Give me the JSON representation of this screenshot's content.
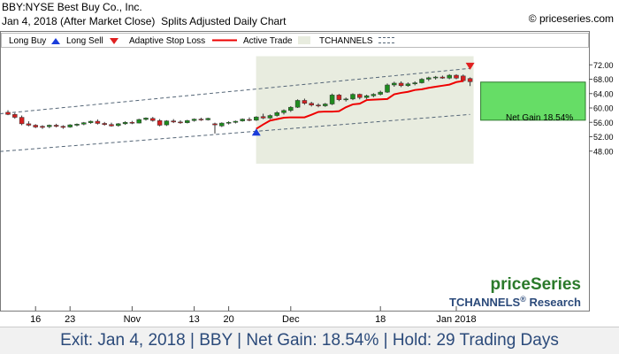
{
  "header": {
    "symbol_line": "BBY:NYSE Best Buy Co., Inc.",
    "date_line": "Jan 4, 2018 (After Market Close)",
    "chart_kind": "Splits Adjusted Daily Chart",
    "copyright": "© priceseries.com"
  },
  "legend": {
    "long_buy": "Long Buy",
    "long_sell": "Long Sell",
    "adaptive_stop_loss": "Adaptive Stop Loss",
    "active_trade": "Active Trade",
    "tchannels": "TCHANNELS"
  },
  "annotation": {
    "net_gain_label": "Net Gain 18.54%"
  },
  "branding": {
    "price_series": "priceSeries",
    "tchannels_research": "TCHANNELS",
    "registered": "®",
    "research": "Research"
  },
  "footer": {
    "summary": "Exit: Jan 4, 2018 | BBY | Net Gain: 18.54% | Hold: 29 Trading Days"
  },
  "colors": {
    "up_candle": "#1e8c1e",
    "down_candle": "#d42020",
    "stop_loss": "#ee0000",
    "active_trade_bg": "#e8ecdf",
    "gain_box": "#66dd66",
    "channel": "#556677",
    "buy_arrow": "#1b3ddb",
    "sell_arrow": "#e02020",
    "brand_green": "#2b7a2b",
    "brand_blue": "#2b4a7a"
  },
  "chart_data": {
    "type": "candlestick",
    "y_axis": {
      "ticks": [
        48,
        52,
        56,
        60,
        64,
        68,
        72
      ],
      "tick_labels": [
        "48.00",
        "52.00",
        "56.00",
        "60.00",
        "64.00",
        "68.00",
        "72.00"
      ]
    },
    "x_axis": {
      "tick_labels": [
        "16",
        "23",
        "Nov",
        "13",
        "20",
        "Dec",
        "18",
        "Jan 2018"
      ],
      "tick_index": [
        4,
        9,
        18,
        27,
        32,
        41,
        54,
        65
      ]
    },
    "grid": false,
    "candles": [
      {
        "o": 58.8,
        "h": 59.4,
        "l": 58.0,
        "c": 58.2
      },
      {
        "o": 58.2,
        "h": 58.6,
        "l": 57.0,
        "c": 57.4
      },
      {
        "o": 57.4,
        "h": 57.9,
        "l": 55.2,
        "c": 55.6
      },
      {
        "o": 55.6,
        "h": 56.3,
        "l": 54.9,
        "c": 55.2
      },
      {
        "o": 55.2,
        "h": 55.5,
        "l": 54.4,
        "c": 54.7
      },
      {
        "o": 54.9,
        "h": 55.2,
        "l": 54.2,
        "c": 54.6
      },
      {
        "o": 54.8,
        "h": 55.4,
        "l": 54.4,
        "c": 55.2
      },
      {
        "o": 55.2,
        "h": 55.6,
        "l": 54.6,
        "c": 54.9
      },
      {
        "o": 54.9,
        "h": 55.2,
        "l": 54.2,
        "c": 54.6
      },
      {
        "o": 54.7,
        "h": 55.5,
        "l": 54.5,
        "c": 55.3
      },
      {
        "o": 55.2,
        "h": 55.7,
        "l": 54.9,
        "c": 55.5
      },
      {
        "o": 55.5,
        "h": 56.1,
        "l": 55.2,
        "c": 55.9
      },
      {
        "o": 55.9,
        "h": 56.5,
        "l": 55.6,
        "c": 56.3
      },
      {
        "o": 56.3,
        "h": 56.8,
        "l": 55.4,
        "c": 55.7
      },
      {
        "o": 55.7,
        "h": 56.1,
        "l": 55.1,
        "c": 55.4
      },
      {
        "o": 55.4,
        "h": 55.9,
        "l": 54.8,
        "c": 55.0
      },
      {
        "o": 55.1,
        "h": 55.8,
        "l": 54.8,
        "c": 55.6
      },
      {
        "o": 55.6,
        "h": 56.3,
        "l": 55.3,
        "c": 56.0
      },
      {
        "o": 56.0,
        "h": 56.4,
        "l": 55.5,
        "c": 55.8
      },
      {
        "o": 55.8,
        "h": 57.0,
        "l": 55.7,
        "c": 56.8
      },
      {
        "o": 56.8,
        "h": 57.4,
        "l": 56.5,
        "c": 57.2
      },
      {
        "o": 57.1,
        "h": 57.5,
        "l": 56.2,
        "c": 56.5
      },
      {
        "o": 56.5,
        "h": 56.9,
        "l": 54.9,
        "c": 55.2
      },
      {
        "o": 55.3,
        "h": 56.6,
        "l": 55.0,
        "c": 56.4
      },
      {
        "o": 56.4,
        "h": 56.9,
        "l": 55.8,
        "c": 56.1
      },
      {
        "o": 56.1,
        "h": 56.6,
        "l": 55.6,
        "c": 55.9
      },
      {
        "o": 55.9,
        "h": 56.7,
        "l": 55.7,
        "c": 56.5
      },
      {
        "o": 56.5,
        "h": 57.1,
        "l": 56.2,
        "c": 56.9
      },
      {
        "o": 56.9,
        "h": 57.3,
        "l": 56.4,
        "c": 56.7
      },
      {
        "o": 56.7,
        "h": 57.3,
        "l": 56.5,
        "c": 57.1
      },
      {
        "o": 55.6,
        "h": 55.9,
        "l": 52.9,
        "c": 55.3
      },
      {
        "o": 55.0,
        "h": 56.0,
        "l": 54.7,
        "c": 55.8
      },
      {
        "o": 55.8,
        "h": 56.3,
        "l": 55.4,
        "c": 56.0
      },
      {
        "o": 56.0,
        "h": 56.5,
        "l": 55.7,
        "c": 56.3
      },
      {
        "o": 56.4,
        "h": 57.1,
        "l": 56.2,
        "c": 56.9
      },
      {
        "o": 56.8,
        "h": 57.4,
        "l": 56.3,
        "c": 56.6
      },
      {
        "o": 56.6,
        "h": 57.7,
        "l": 56.4,
        "c": 57.5
      },
      {
        "o": 57.6,
        "h": 58.4,
        "l": 56.9,
        "c": 57.2
      },
      {
        "o": 57.2,
        "h": 58.2,
        "l": 56.9,
        "c": 57.9
      },
      {
        "o": 57.9,
        "h": 59.1,
        "l": 57.6,
        "c": 58.7
      },
      {
        "o": 58.7,
        "h": 59.6,
        "l": 58.2,
        "c": 59.3
      },
      {
        "o": 59.3,
        "h": 60.5,
        "l": 58.9,
        "c": 60.2
      },
      {
        "o": 60.2,
        "h": 62.4,
        "l": 60.0,
        "c": 62.1
      },
      {
        "o": 62.1,
        "h": 62.6,
        "l": 60.9,
        "c": 61.3
      },
      {
        "o": 61.3,
        "h": 61.7,
        "l": 60.4,
        "c": 60.8
      },
      {
        "o": 60.8,
        "h": 61.3,
        "l": 60.2,
        "c": 60.6
      },
      {
        "o": 60.6,
        "h": 61.4,
        "l": 60.3,
        "c": 61.1
      },
      {
        "o": 61.1,
        "h": 64.0,
        "l": 60.8,
        "c": 63.6
      },
      {
        "o": 63.6,
        "h": 63.9,
        "l": 61.9,
        "c": 62.3
      },
      {
        "o": 62.3,
        "h": 62.9,
        "l": 61.8,
        "c": 62.5
      },
      {
        "o": 62.5,
        "h": 64.1,
        "l": 62.2,
        "c": 63.8
      },
      {
        "o": 63.8,
        "h": 64.0,
        "l": 62.4,
        "c": 62.9
      },
      {
        "o": 62.9,
        "h": 63.7,
        "l": 62.5,
        "c": 63.4
      },
      {
        "o": 63.4,
        "h": 64.1,
        "l": 63.0,
        "c": 63.8
      },
      {
        "o": 63.8,
        "h": 64.8,
        "l": 63.5,
        "c": 64.4
      },
      {
        "o": 64.4,
        "h": 66.8,
        "l": 64.2,
        "c": 66.4
      },
      {
        "o": 66.4,
        "h": 67.3,
        "l": 65.9,
        "c": 66.9
      },
      {
        "o": 66.9,
        "h": 67.4,
        "l": 65.8,
        "c": 66.2
      },
      {
        "o": 66.2,
        "h": 67.1,
        "l": 65.9,
        "c": 66.7
      },
      {
        "o": 66.7,
        "h": 67.4,
        "l": 66.3,
        "c": 67.0
      },
      {
        "o": 67.0,
        "h": 68.3,
        "l": 66.8,
        "c": 68.0
      },
      {
        "o": 68.0,
        "h": 68.7,
        "l": 67.5,
        "c": 68.4
      },
      {
        "o": 68.4,
        "h": 68.9,
        "l": 67.9,
        "c": 68.6
      },
      {
        "o": 68.6,
        "h": 69.0,
        "l": 68.1,
        "c": 68.3
      },
      {
        "o": 68.3,
        "h": 69.4,
        "l": 68.0,
        "c": 69.1
      },
      {
        "o": 69.1,
        "h": 69.4,
        "l": 68.0,
        "c": 68.3
      },
      {
        "o": 68.9,
        "h": 69.3,
        "l": 67.2,
        "c": 67.6
      },
      {
        "o": 68.2,
        "h": 68.5,
        "l": 66.1,
        "c": 67.3
      }
    ],
    "stop_loss": {
      "start_index": 36,
      "values": [
        54.2,
        55.4,
        56.5,
        56.9,
        57.3,
        57.4,
        57.4,
        57.4,
        58.1,
        58.9,
        59.0,
        59.0,
        59.1,
        60.2,
        61.0,
        61.2,
        62.2,
        62.3,
        62.4,
        62.5,
        63.8,
        64.2,
        64.5,
        65.0,
        65.2,
        65.6,
        65.9,
        66.2,
        66.5,
        67.2,
        67.5
      ]
    },
    "channel_upper": {
      "x": [
        0,
        67
      ],
      "y": [
        58.4,
        71.0
      ]
    },
    "channel_lower": {
      "x": [
        0,
        67
      ],
      "y": [
        47.9,
        58.2
      ]
    },
    "active_trade": {
      "start_index": 37,
      "end_index": 67,
      "ymin": 44.5,
      "ymax": 74.4
    },
    "buy_signal": {
      "index": 36,
      "price": 53.3
    },
    "sell_signal": {
      "index": 67,
      "price": 71.6
    },
    "gain_box": {
      "entry": 56.6,
      "exit": 67.2
    }
  }
}
